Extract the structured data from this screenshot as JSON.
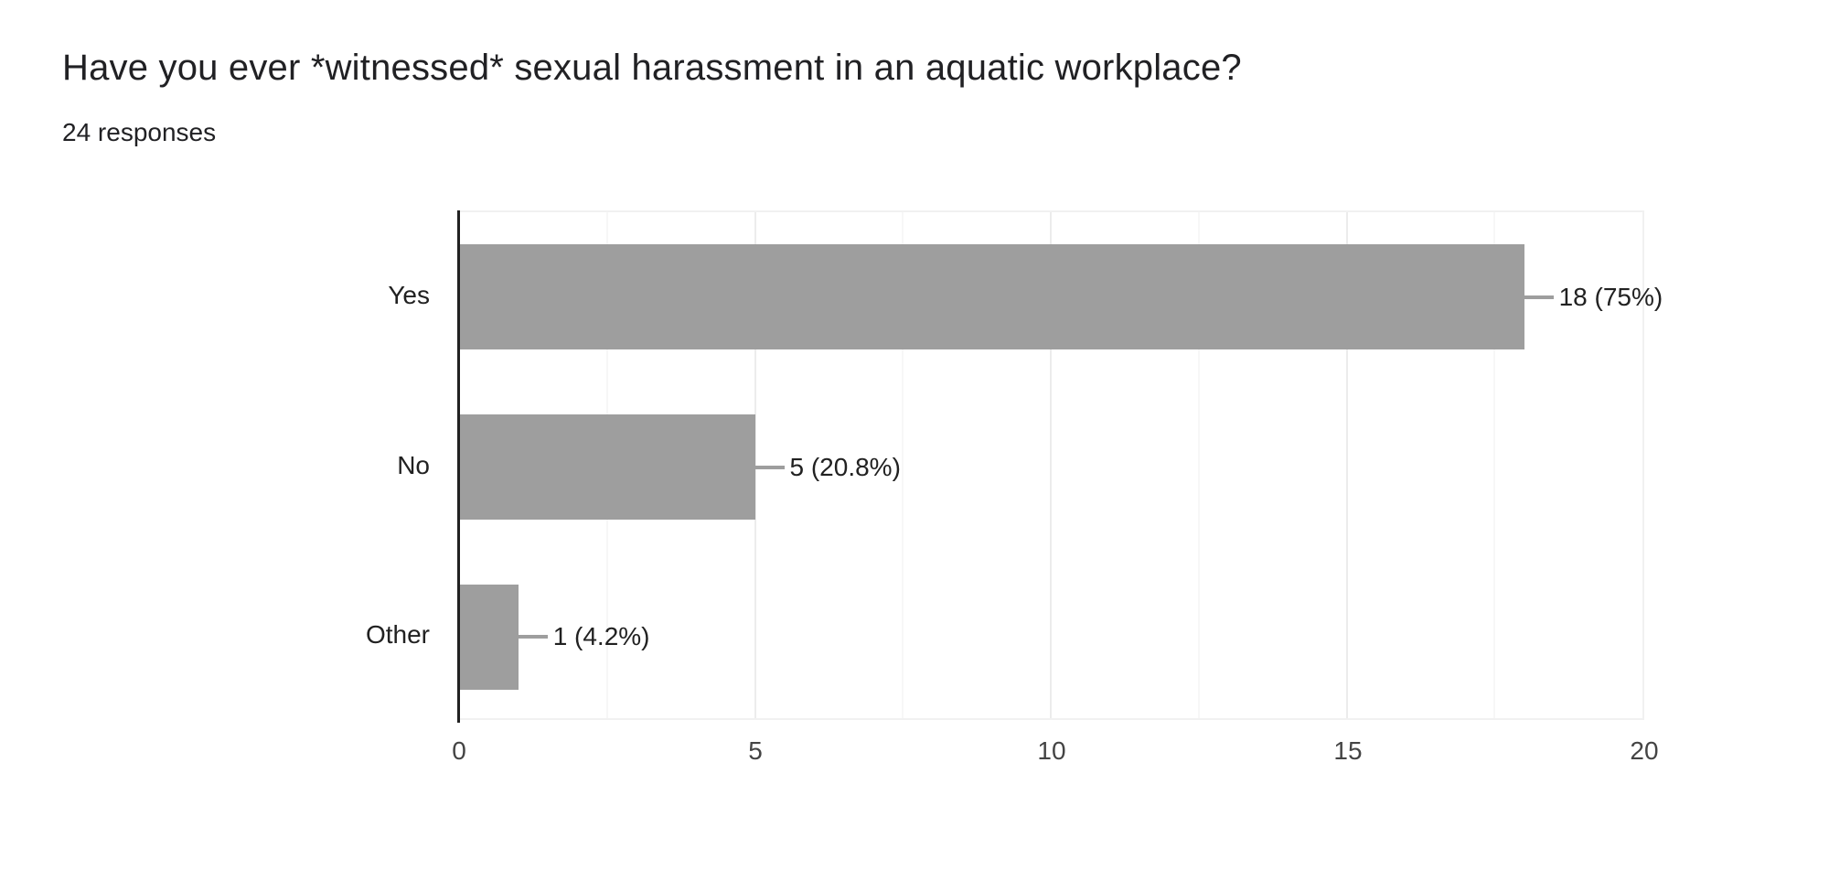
{
  "header": {
    "title": "Have you ever *witnessed* sexual harassment in an aquatic workplace?",
    "responses": "24 responses"
  },
  "chart_data": {
    "type": "bar",
    "orientation": "horizontal",
    "title": "Have you ever *witnessed* sexual harassment in an aquatic workplace?",
    "subtitle": "24 responses",
    "categories": [
      "Yes",
      "No",
      "Other"
    ],
    "values": [
      18,
      5,
      1
    ],
    "percentages": [
      75,
      20.8,
      4.2
    ],
    "value_labels": [
      "18 (75%)",
      "5 (20.8%)",
      "1 (4.2%)"
    ],
    "xlim": [
      0,
      20
    ],
    "x_ticks": [
      0,
      5,
      10,
      15,
      20
    ],
    "minor_grid_step": 2.5,
    "grid": true,
    "legend": "none"
  },
  "colors": {
    "bar": "#9E9E9E",
    "callout_line": "#9e9e9e",
    "axis_line": "#212121",
    "title_text": "#212124",
    "value_text": "#212121",
    "category_text": "#212121",
    "tick_text": "#444444",
    "major_grid": "#ececec",
    "minor_grid": "#f7f7f7",
    "plot_border": "#f1f1f1",
    "background": "#ffffff"
  }
}
